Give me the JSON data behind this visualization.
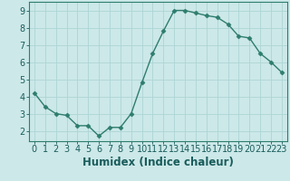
{
  "x": [
    0,
    1,
    2,
    3,
    4,
    5,
    6,
    7,
    8,
    9,
    10,
    11,
    12,
    13,
    14,
    15,
    16,
    17,
    18,
    19,
    20,
    21,
    22,
    23
  ],
  "y": [
    4.2,
    3.4,
    3.0,
    2.9,
    2.3,
    2.3,
    1.7,
    2.2,
    2.2,
    3.0,
    4.8,
    6.5,
    7.8,
    9.0,
    9.0,
    8.85,
    8.7,
    8.6,
    8.2,
    7.5,
    7.4,
    6.5,
    6.0,
    5.4
  ],
  "line_color": "#2e7d6e",
  "marker": "D",
  "marker_size": 2.5,
  "bg_color": "#cce8e8",
  "grid_color": "#aed4d4",
  "xlabel": "Humidex (Indice chaleur)",
  "xlim": [
    -0.5,
    23.5
  ],
  "ylim": [
    1.4,
    9.5
  ],
  "yticks": [
    2,
    3,
    4,
    5,
    6,
    7,
    8,
    9
  ],
  "xticks": [
    0,
    1,
    2,
    3,
    4,
    5,
    6,
    7,
    8,
    9,
    10,
    11,
    12,
    13,
    14,
    15,
    16,
    17,
    18,
    19,
    20,
    21,
    22,
    23
  ],
  "font_color": "#1a5c5c",
  "xlabel_fontsize": 8.5,
  "tick_fontsize": 7,
  "line_width": 1.0,
  "spine_color": "#2e7d6e"
}
